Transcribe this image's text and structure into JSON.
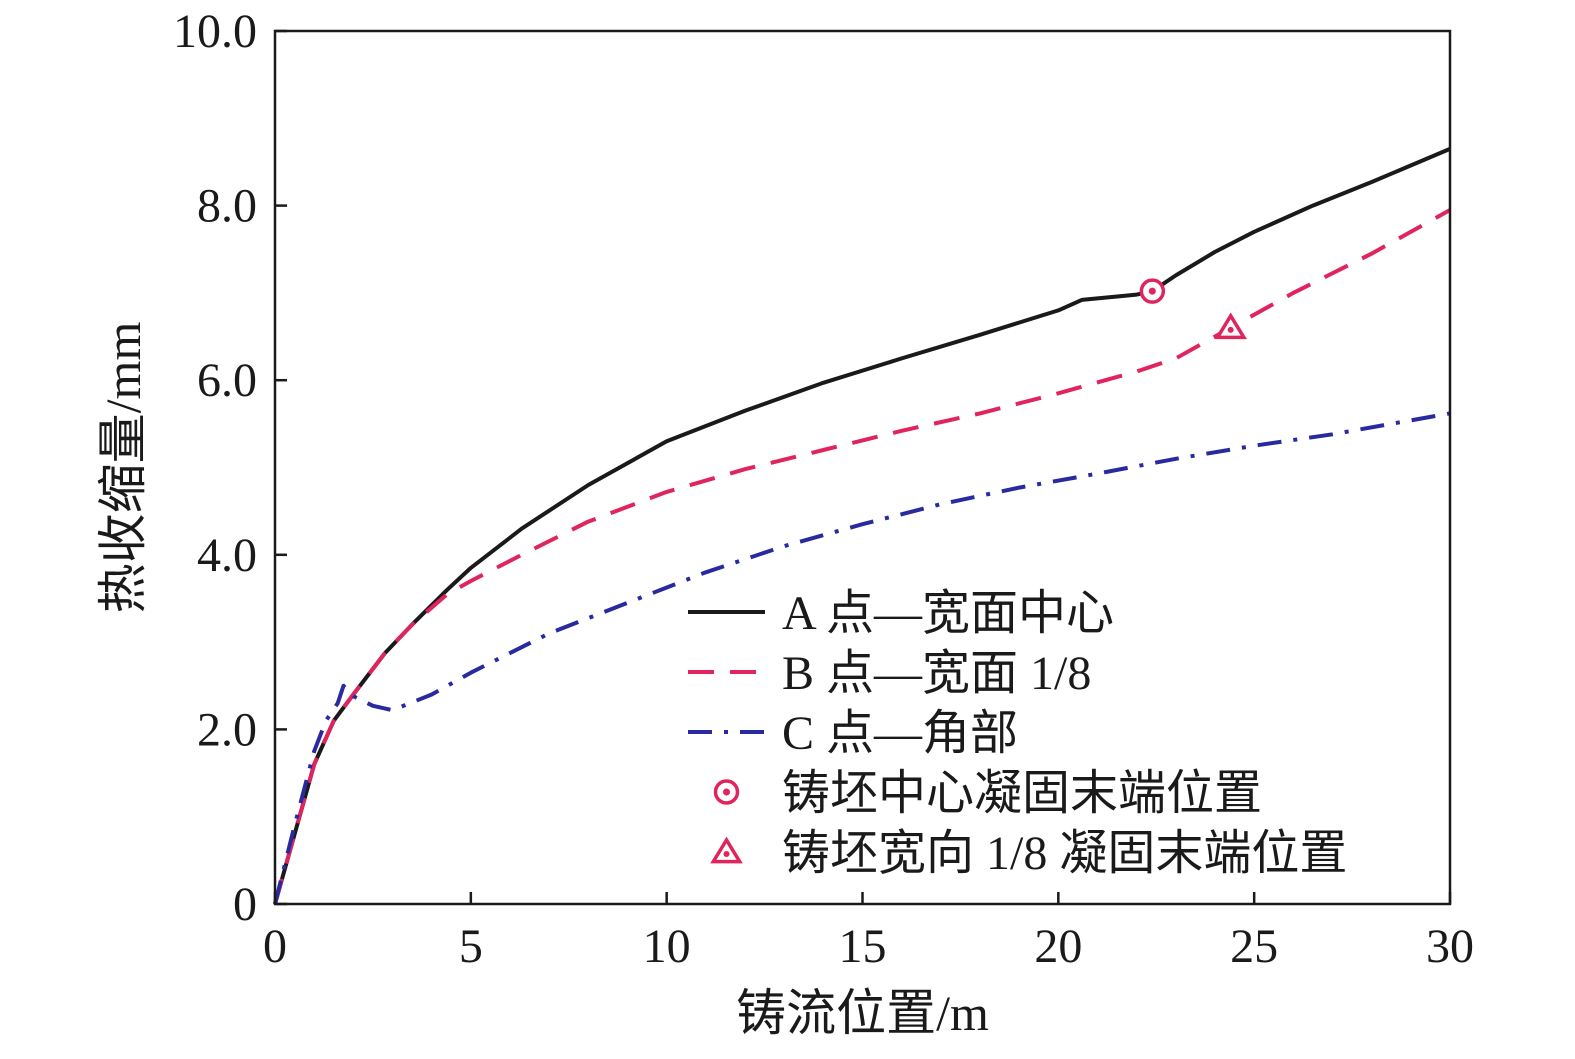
{
  "chart_data": {
    "type": "line",
    "xlabel": "铸流位置/m",
    "ylabel": "热收缩量/mm",
    "xlim": [
      0,
      30
    ],
    "ylim": [
      0,
      10
    ],
    "x_ticks": [
      0,
      5,
      10,
      15,
      20,
      25,
      30
    ],
    "x_tick_labels": [
      "0",
      "5",
      "10",
      "15",
      "20",
      "25",
      "30"
    ],
    "y_ticks": [
      0,
      2,
      4,
      6,
      8,
      10
    ],
    "y_tick_labels": [
      "0",
      "2.0",
      "4.0",
      "6.0",
      "8.0",
      "10.0"
    ],
    "grid": false,
    "legend_position": "lower-right",
    "series": [
      {
        "name": "A 点—宽面中心",
        "style": "solid",
        "color": "#1a1a1a",
        "points": [
          [
            0,
            0
          ],
          [
            0.5,
            0.8
          ],
          [
            1.0,
            1.6
          ],
          [
            1.5,
            2.1
          ],
          [
            2.0,
            2.4
          ],
          [
            2.8,
            2.87
          ],
          [
            3.5,
            3.2
          ],
          [
            4.4,
            3.6
          ],
          [
            5.0,
            3.85
          ],
          [
            6.3,
            4.3
          ],
          [
            8.0,
            4.8
          ],
          [
            10.0,
            5.3
          ],
          [
            12.0,
            5.65
          ],
          [
            14.0,
            5.97
          ],
          [
            16.0,
            6.25
          ],
          [
            18.0,
            6.52
          ],
          [
            20.0,
            6.8
          ],
          [
            20.6,
            6.92
          ],
          [
            22.0,
            6.98
          ],
          [
            22.4,
            7.02
          ],
          [
            23.0,
            7.2
          ],
          [
            24.0,
            7.47
          ],
          [
            25.0,
            7.7
          ],
          [
            26.5,
            8.0
          ],
          [
            28.0,
            8.27
          ],
          [
            30.0,
            8.65
          ]
        ]
      },
      {
        "name": "B 点—宽面 1/8",
        "style": "dashed",
        "color": "#e0245e",
        "points": [
          [
            0,
            0
          ],
          [
            0.5,
            0.8
          ],
          [
            1.0,
            1.6
          ],
          [
            1.5,
            2.1
          ],
          [
            2.0,
            2.4
          ],
          [
            2.8,
            2.87
          ],
          [
            3.5,
            3.2
          ],
          [
            4.4,
            3.55
          ],
          [
            5.0,
            3.7
          ],
          [
            6.3,
            4.0
          ],
          [
            8.0,
            4.38
          ],
          [
            10.0,
            4.72
          ],
          [
            12.0,
            4.98
          ],
          [
            14.0,
            5.2
          ],
          [
            16.0,
            5.42
          ],
          [
            18.0,
            5.62
          ],
          [
            20.0,
            5.85
          ],
          [
            22.0,
            6.1
          ],
          [
            23.0,
            6.25
          ],
          [
            24.0,
            6.5
          ],
          [
            24.4,
            6.6
          ],
          [
            26.0,
            7.0
          ],
          [
            28.0,
            7.45
          ],
          [
            30.0,
            7.95
          ]
        ]
      },
      {
        "name": "C 点—角部",
        "style": "dash-dot",
        "color": "#2a2aa0",
        "points": [
          [
            0,
            0
          ],
          [
            0.5,
            0.9
          ],
          [
            1.0,
            1.75
          ],
          [
            1.3,
            2.1
          ],
          [
            1.6,
            2.3
          ],
          [
            1.75,
            2.5
          ],
          [
            2.0,
            2.38
          ],
          [
            2.5,
            2.27
          ],
          [
            3.0,
            2.22
          ],
          [
            4.0,
            2.4
          ],
          [
            5.0,
            2.65
          ],
          [
            7.0,
            3.1
          ],
          [
            9.0,
            3.45
          ],
          [
            11.0,
            3.8
          ],
          [
            13.0,
            4.1
          ],
          [
            15.0,
            4.35
          ],
          [
            17.0,
            4.58
          ],
          [
            19.0,
            4.77
          ],
          [
            21.0,
            4.93
          ],
          [
            23.0,
            5.1
          ],
          [
            25.0,
            5.25
          ],
          [
            27.0,
            5.38
          ],
          [
            30.0,
            5.62
          ]
        ]
      }
    ],
    "markers": [
      {
        "name": "铸坯中心凝固末端位置",
        "shape": "circle",
        "x": 22.4,
        "y": 7.02,
        "color": "#e0245e"
      },
      {
        "name": "铸坯宽向 1/8 凝固末端位置",
        "shape": "triangle",
        "x": 24.4,
        "y": 6.6,
        "color": "#e0245e"
      }
    ]
  }
}
